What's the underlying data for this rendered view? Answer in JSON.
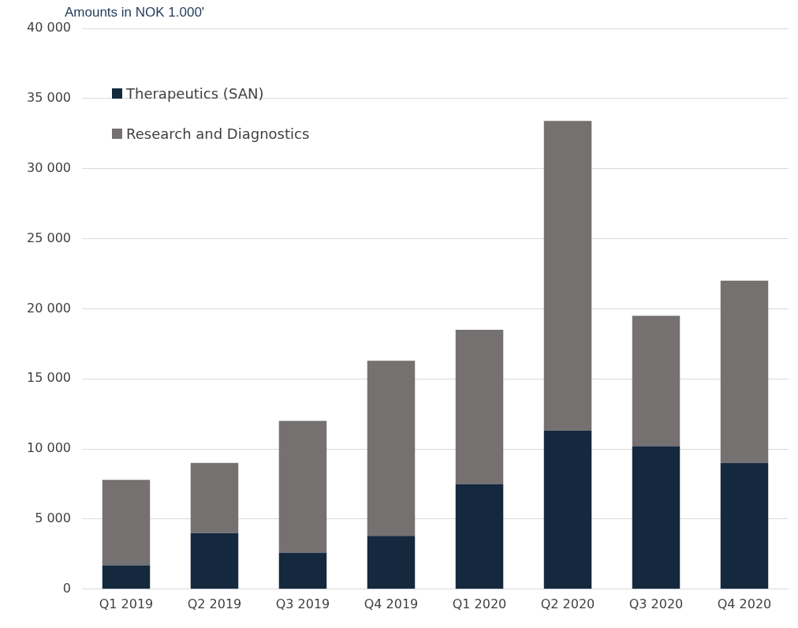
{
  "chart_data": {
    "type": "bar",
    "stacked": true,
    "ylabel": "Amounts in NOK 1.000'",
    "categories": [
      "Q1 2019",
      "Q2 2019",
      "Q3 2019",
      "Q4 2019",
      "Q1 2020",
      "Q2 2020",
      "Q3 2020",
      "Q4 2020"
    ],
    "series": [
      {
        "name": "Therapeutics (SAN)",
        "color": "#14283e",
        "values": [
          1700,
          4000,
          2600,
          3800,
          7500,
          11300,
          10200,
          9000
        ]
      },
      {
        "name": "Research and Diagnostics",
        "color": "#767171",
        "values": [
          6100,
          5000,
          9400,
          12500,
          11000,
          22100,
          9300,
          13000
        ]
      }
    ],
    "ylim": [
      0,
      40000
    ],
    "yticks": [
      {
        "value": 0,
        "label": "0"
      },
      {
        "value": 5000,
        "label": "5 000"
      },
      {
        "value": 10000,
        "label": "10 000"
      },
      {
        "value": 15000,
        "label": "15 000"
      },
      {
        "value": 20000,
        "label": "20 000"
      },
      {
        "value": 25000,
        "label": "25 000"
      },
      {
        "value": 30000,
        "label": "30 000"
      },
      {
        "value": 35000,
        "label": "35 000"
      },
      {
        "value": 40000,
        "label": "40 000"
      }
    ],
    "grid": "y",
    "legend": "top left"
  }
}
